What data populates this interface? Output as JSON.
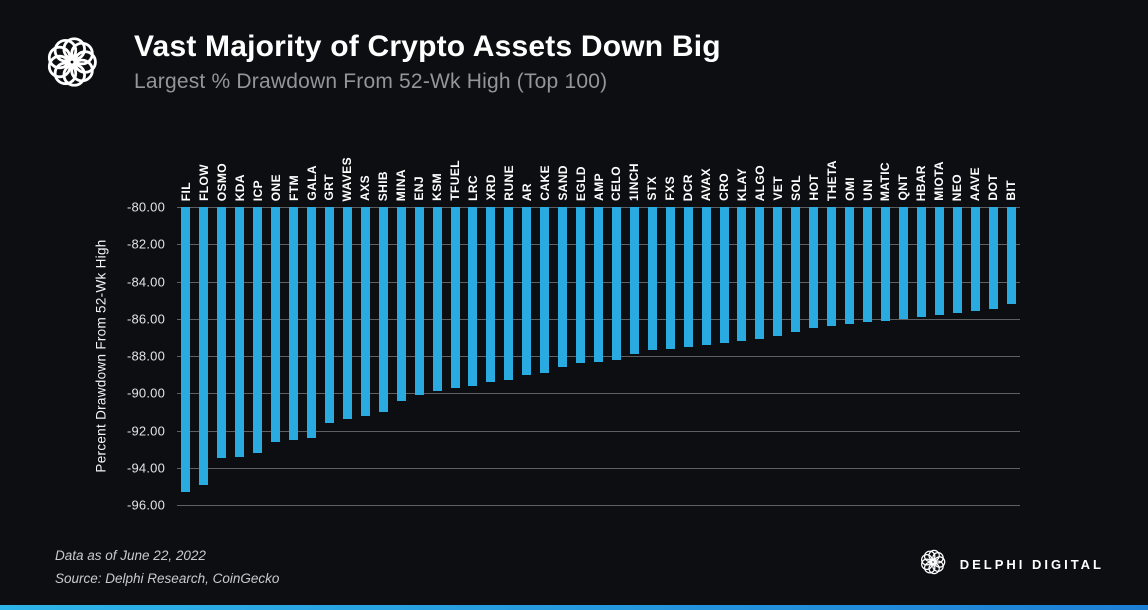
{
  "header": {
    "title": "Vast Majority of Crypto Assets Down Big",
    "subtitle": "Largest % Drawdown From 52-Wk High (Top 100)"
  },
  "footer": {
    "data_as_of": "Data as of  June 22, 2022",
    "source": "Source:  Delphi Research, CoinGecko",
    "brand": "DELPHI DIGITAL"
  },
  "colors": {
    "background": "#0d0e12",
    "bar": "#29abe2",
    "grid": "rgba(255,255,255,0.34)"
  },
  "chart_data": {
    "type": "bar",
    "title": "Vast Majority of Crypto Assets Down Big",
    "subtitle": "Largest % Drawdown From 52-Wk High (Top 100)",
    "xlabel": "",
    "ylabel": "Percent Drawdown From 52-Wk High",
    "ylim": [
      -96,
      -80
    ],
    "yticks": [
      -80,
      -82,
      -84,
      -86,
      -88,
      -90,
      -92,
      -94,
      -96
    ],
    "grid": true,
    "legend": false,
    "bar_color": "#29abe2",
    "categories": [
      "FIL",
      "FLOW",
      "OSMO",
      "KDA",
      "ICP",
      "ONE",
      "FTM",
      "GALA",
      "GRT",
      "WAVES",
      "AXS",
      "SHIB",
      "MINA",
      "ENJ",
      "KSM",
      "TFUEL",
      "LRC",
      "XRD",
      "RUNE",
      "AR",
      "CAKE",
      "SAND",
      "EGLD",
      "AMP",
      "CELO",
      "1INCH",
      "STX",
      "FXS",
      "DCR",
      "AVAX",
      "CRO",
      "KLAY",
      "ALGO",
      "VET",
      "SOL",
      "HOT",
      "THETA",
      "OMI",
      "UNI",
      "MATIC",
      "QNT",
      "HBAR",
      "MIOTA",
      "NEO",
      "AAVE",
      "DOT",
      "BIT"
    ],
    "values": [
      -95.3,
      -94.9,
      -93.5,
      -93.4,
      -93.2,
      -92.6,
      -92.5,
      -92.4,
      -91.6,
      -91.4,
      -91.2,
      -91.0,
      -90.4,
      -90.1,
      -89.9,
      -89.7,
      -89.6,
      -89.4,
      -89.3,
      -89.0,
      -88.9,
      -88.6,
      -88.4,
      -88.3,
      -88.2,
      -87.9,
      -87.7,
      -87.6,
      -87.5,
      -87.4,
      -87.3,
      -87.2,
      -87.1,
      -86.9,
      -86.7,
      -86.5,
      -86.4,
      -86.3,
      -86.2,
      -86.1,
      -86.0,
      -85.9,
      -85.8,
      -85.7,
      -85.6,
      -85.5,
      -85.2
    ]
  }
}
